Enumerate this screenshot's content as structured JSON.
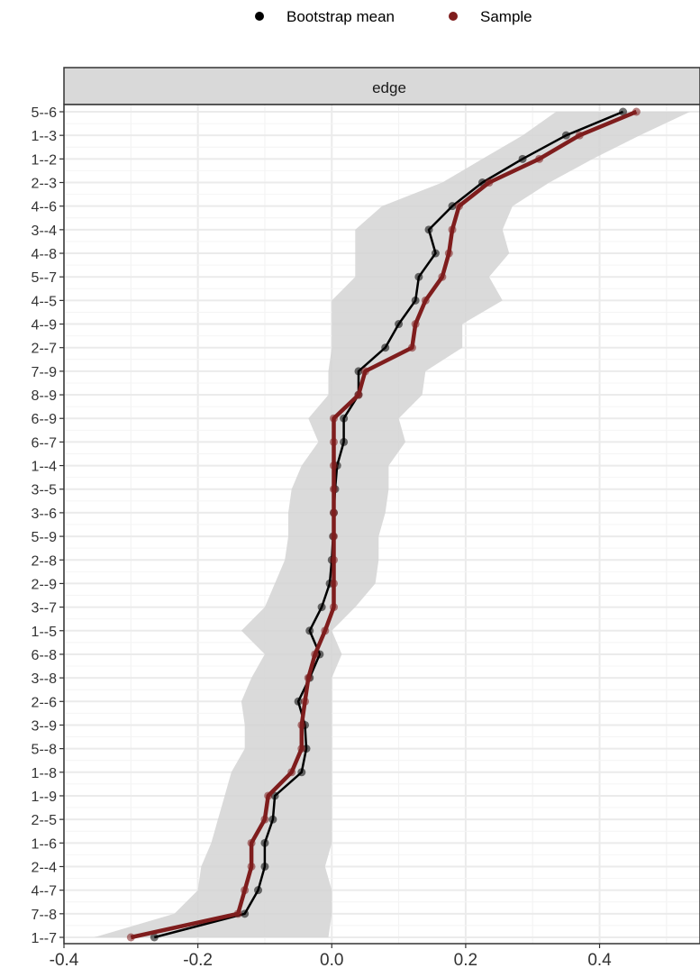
{
  "legend": {
    "items": [
      {
        "label": "Bootstrap mean",
        "color": "#000000"
      },
      {
        "label": "Sample",
        "color": "#7f1d1d"
      }
    ]
  },
  "facet": {
    "label": "edge"
  },
  "colors": {
    "band": "#d3d3d3",
    "bootstrap": "#000000",
    "sample": "#7f1d1d",
    "strip_bg": "#d9d9d9",
    "grid": "#ebebeb"
  },
  "chart_data": {
    "type": "line",
    "orientation": "horizontal",
    "xlim": [
      -0.4,
      0.55
    ],
    "x_ticks": [
      "-0.4",
      "-0.2",
      "0.0",
      "0.2",
      "0.4"
    ],
    "x_tick_values": [
      -0.4,
      -0.2,
      0.0,
      0.2,
      0.4
    ],
    "grid": true,
    "legend_position": "top",
    "categories": [
      "5--6",
      "1--3",
      "1--2",
      "2--3",
      "4--6",
      "3--4",
      "4--8",
      "5--7",
      "4--5",
      "4--9",
      "2--7",
      "7--9",
      "8--9",
      "6--9",
      "6--7",
      "1--4",
      "3--5",
      "3--6",
      "5--9",
      "2--8",
      "2--9",
      "3--7",
      "1--5",
      "6--8",
      "3--8",
      "2--6",
      "3--9",
      "5--8",
      "1--8",
      "1--9",
      "2--5",
      "1--6",
      "2--4",
      "4--7",
      "7--8",
      "1--7"
    ],
    "series": [
      {
        "name": "Bootstrap mean",
        "values": [
          0.435,
          0.35,
          0.285,
          0.225,
          0.18,
          0.145,
          0.155,
          0.13,
          0.125,
          0.1,
          0.08,
          0.04,
          0.04,
          0.018,
          0.018,
          0.008,
          0.005,
          0.003,
          0.002,
          0.0,
          -0.003,
          -0.015,
          -0.033,
          -0.018,
          -0.033,
          -0.05,
          -0.04,
          -0.038,
          -0.045,
          -0.085,
          -0.088,
          -0.1,
          -0.1,
          -0.11,
          -0.13,
          -0.265
        ]
      },
      {
        "name": "Sample",
        "values": [
          0.455,
          0.37,
          0.31,
          0.235,
          0.19,
          0.18,
          0.175,
          0.165,
          0.14,
          0.125,
          0.12,
          0.05,
          0.04,
          0.003,
          0.003,
          0.003,
          0.003,
          0.003,
          0.003,
          0.003,
          0.003,
          0.003,
          -0.01,
          -0.025,
          -0.035,
          -0.04,
          -0.045,
          -0.045,
          -0.06,
          -0.095,
          -0.1,
          -0.12,
          -0.12,
          -0.13,
          -0.14,
          -0.3
        ]
      }
    ],
    "band": {
      "lower": [
        0.335,
        0.285,
        0.225,
        0.165,
        0.075,
        0.035,
        0.035,
        0.035,
        0.0,
        0.0,
        0.0,
        -0.005,
        -0.005,
        -0.035,
        -0.02,
        -0.045,
        -0.06,
        -0.065,
        -0.065,
        -0.07,
        -0.085,
        -0.1,
        -0.135,
        -0.1,
        -0.12,
        -0.135,
        -0.13,
        -0.13,
        -0.15,
        -0.16,
        -0.17,
        -0.18,
        -0.195,
        -0.2,
        -0.235,
        -0.355
      ],
      "upper": [
        0.535,
        0.46,
        0.39,
        0.325,
        0.27,
        0.255,
        0.265,
        0.235,
        0.255,
        0.195,
        0.195,
        0.14,
        0.135,
        0.1,
        0.11,
        0.085,
        0.085,
        0.08,
        0.07,
        0.07,
        0.065,
        0.035,
        0.0,
        0.015,
        0.0,
        0.0,
        0.0,
        0.0,
        0.0,
        0.0,
        0.0,
        0.0,
        -0.01,
        0.0,
        0.0,
        -0.005
      ]
    }
  }
}
